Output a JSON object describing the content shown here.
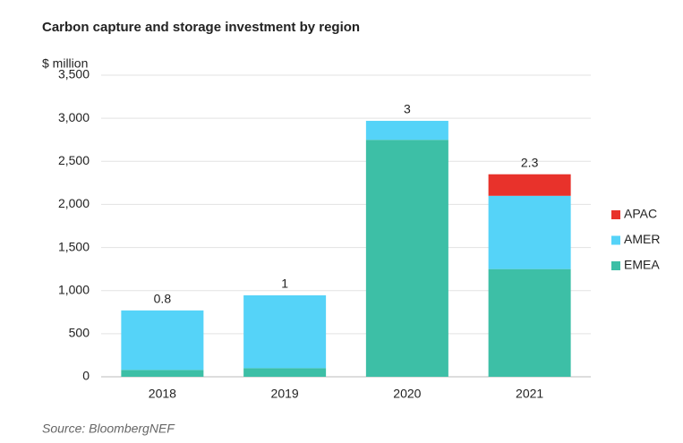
{
  "chart_data": {
    "type": "stacked_bar",
    "title": "Carbon capture and storage investment by region",
    "y_axis_label": "$ million",
    "source": "Source: BloombergNEF",
    "categories": [
      "2018",
      "2019",
      "2020",
      "2021"
    ],
    "series": [
      {
        "name": "EMEA",
        "color": "#3dbfa6",
        "values": [
          80,
          100,
          2750,
          1250
        ]
      },
      {
        "name": "AMER",
        "color": "#55d3f8",
        "values": [
          690,
          845,
          220,
          850
        ]
      },
      {
        "name": "APAC",
        "color": "#e8322b",
        "values": [
          null,
          null,
          null,
          250
        ]
      }
    ],
    "annotations": [
      "0.8",
      "1",
      "3",
      "2.3"
    ],
    "ylim": [
      0,
      3500
    ],
    "yticks": [
      0,
      500,
      {
        "value": 1000,
        "label": "1,000"
      },
      {
        "value": 1500,
        "label": "1,500"
      },
      {
        "value": 2000,
        "label": "2,000"
      },
      {
        "value": 2500,
        "label": "2,500"
      },
      {
        "value": 3000,
        "label": "3,000"
      },
      {
        "value": 3500,
        "label": "3,500"
      }
    ],
    "grid": true,
    "legend": "right"
  }
}
